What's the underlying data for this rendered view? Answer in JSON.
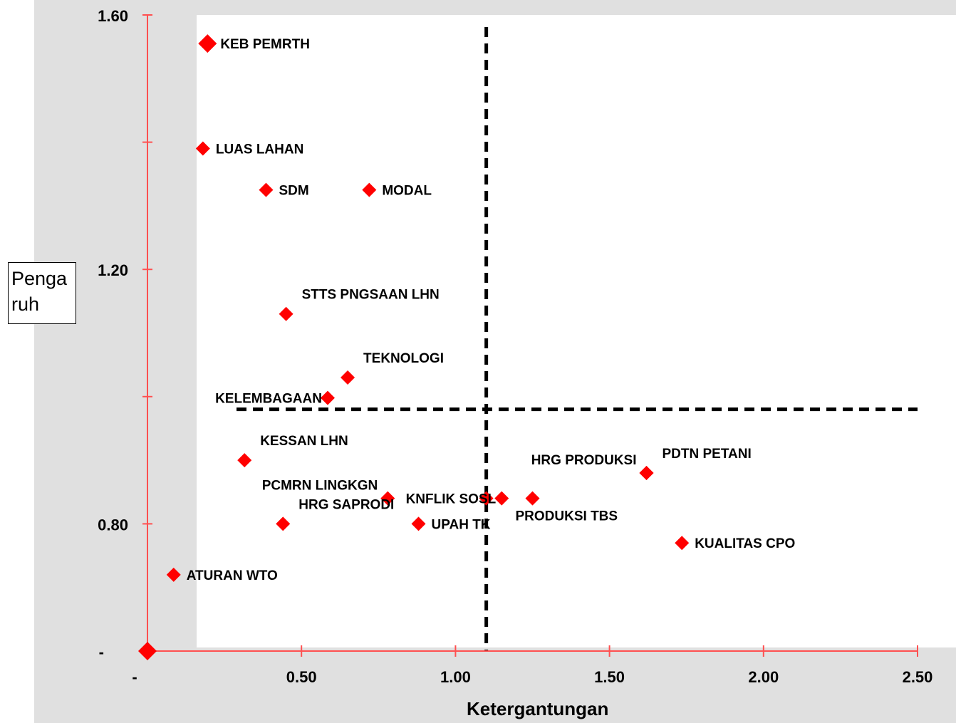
{
  "chart_data": {
    "type": "scatter",
    "xlabel": "Ketergantungan",
    "ylabel": "Pengaruh",
    "ylabel_lines": [
      "Penga",
      "ruh"
    ],
    "xlim": [
      0,
      2.5
    ],
    "ylim": [
      0.6,
      1.6
    ],
    "x_ticks": [
      {
        "value": 0,
        "label": "-"
      },
      {
        "value": 0.5,
        "label": "0.50"
      },
      {
        "value": 1.0,
        "label": "1.00"
      },
      {
        "value": 1.5,
        "label": "1.50"
      },
      {
        "value": 2.0,
        "label": "2.00"
      },
      {
        "value": 2.5,
        "label": "2.50"
      }
    ],
    "y_ticks": [
      {
        "value": 0.6,
        "label": "-"
      },
      {
        "value": 0.8,
        "label": "0.80"
      },
      {
        "value": 1.0,
        "label": ""
      },
      {
        "value": 1.2,
        "label": "1.20"
      },
      {
        "value": 1.4,
        "label": ""
      },
      {
        "value": 1.6,
        "label": "1.60"
      }
    ],
    "quadrant_lines": {
      "x": 1.1,
      "y": 0.98
    },
    "marker_color": "#ff0000",
    "axis_color": "#ff5050",
    "points": [
      {
        "label": "KEB PEMRTH",
        "x": 0.195,
        "y": 1.555,
        "label_pos": "right",
        "large": true
      },
      {
        "label": "LUAS LAHAN",
        "x": 0.18,
        "y": 1.39,
        "label_pos": "right"
      },
      {
        "label": "SDM",
        "x": 0.385,
        "y": 1.325,
        "label_pos": "right"
      },
      {
        "label": "MODAL",
        "x": 0.72,
        "y": 1.325,
        "label_pos": "right"
      },
      {
        "label": "STTS PNGSAAN LHN",
        "x": 0.45,
        "y": 1.13,
        "label_pos": "upper-right"
      },
      {
        "label": "TEKNOLOGI",
        "x": 0.65,
        "y": 1.03,
        "label_pos": "upper-right"
      },
      {
        "label": "KELEMBAGAAN",
        "x": 0.585,
        "y": 0.998,
        "label_pos": "left"
      },
      {
        "label": "KESSAN LHN",
        "x": 0.315,
        "y": 0.9,
        "label_pos": "upper-right"
      },
      {
        "label": "HRG PRODUKSI",
        "x": 1.62,
        "y": 0.88,
        "label_pos": "upper-left"
      },
      {
        "label": "PDTN PETANI",
        "x": 1.62,
        "y": 0.88,
        "label_pos": "upper-right"
      },
      {
        "label": "PCMRN LINGKGN",
        "x": 0.78,
        "y": 0.84,
        "label_pos": "upper-left"
      },
      {
        "label": "KNFLIK SOSL",
        "x": 1.15,
        "y": 0.84,
        "label_pos": "left"
      },
      {
        "label": "",
        "x": 1.1,
        "y": 0.84
      },
      {
        "label": "PRODUKSI TBS",
        "x": 1.25,
        "y": 0.84,
        "label_pos": "lower-left"
      },
      {
        "label": "HRG SAPRODI",
        "x": 0.44,
        "y": 0.8,
        "label_pos": "upper-right"
      },
      {
        "label": "UPAH TK",
        "x": 0.88,
        "y": 0.8,
        "label_pos": "right"
      },
      {
        "label": "KUALITAS CPO",
        "x": 1.735,
        "y": 0.77,
        "label_pos": "right"
      },
      {
        "label": "ATURAN WTO",
        "x": 0.085,
        "y": 0.72,
        "label_pos": "right"
      },
      {
        "label": "",
        "x": 0.0,
        "y": 0.6,
        "large": true
      }
    ]
  }
}
